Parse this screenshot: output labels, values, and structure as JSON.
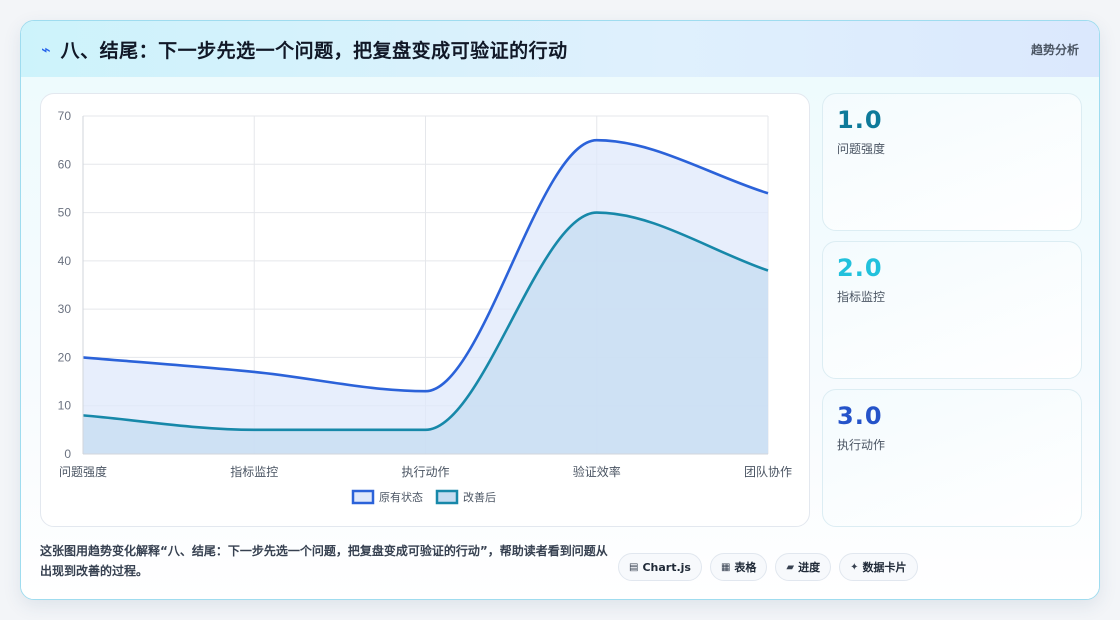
{
  "header": {
    "icon": "lightning-icon",
    "title": "八、结尾：下一步先选一个问题，把复盘变成可验证的行动",
    "badge": "趋势分析"
  },
  "chart_data": {
    "type": "area",
    "categories": [
      "问题强度",
      "指标监控",
      "执行动作",
      "验证效率",
      "团队协作"
    ],
    "series": [
      {
        "name": "原有状态",
        "values": [
          20,
          17,
          13,
          65,
          54
        ],
        "color": "#2b62d9",
        "fill": "#dfe8fb"
      },
      {
        "name": "改善后",
        "values": [
          8,
          5,
          5,
          50,
          38
        ],
        "color": "#1788a9",
        "fill": "#c5dcf1"
      }
    ],
    "ylim": [
      0,
      70
    ],
    "yticks": [
      0,
      10,
      20,
      30,
      40,
      50,
      60,
      70
    ],
    "grid": true,
    "legend": "bottom"
  },
  "stats": [
    {
      "value": "1.0",
      "label": "问题强度",
      "color": "#0e7a9a"
    },
    {
      "value": "2.0",
      "label": "指标监控",
      "color": "#22c1dc"
    },
    {
      "value": "3.0",
      "label": "执行动作",
      "color": "#2553c9"
    }
  ],
  "footer": {
    "text": "这张图用趋势变化解释“八、结尾：下一步先选一个问题，把复盘变成可验证的行动”，帮助读者看到问题从出现到改善的过程。",
    "chips": [
      {
        "icon": "chart-icon",
        "glyph": "▤",
        "label": "Chart.js"
      },
      {
        "icon": "table-icon",
        "glyph": "▦",
        "label": "表格"
      },
      {
        "icon": "progress-icon",
        "glyph": "▰",
        "label": "进度"
      },
      {
        "icon": "sparkle-icon",
        "glyph": "✦",
        "label": "数据卡片"
      }
    ]
  }
}
